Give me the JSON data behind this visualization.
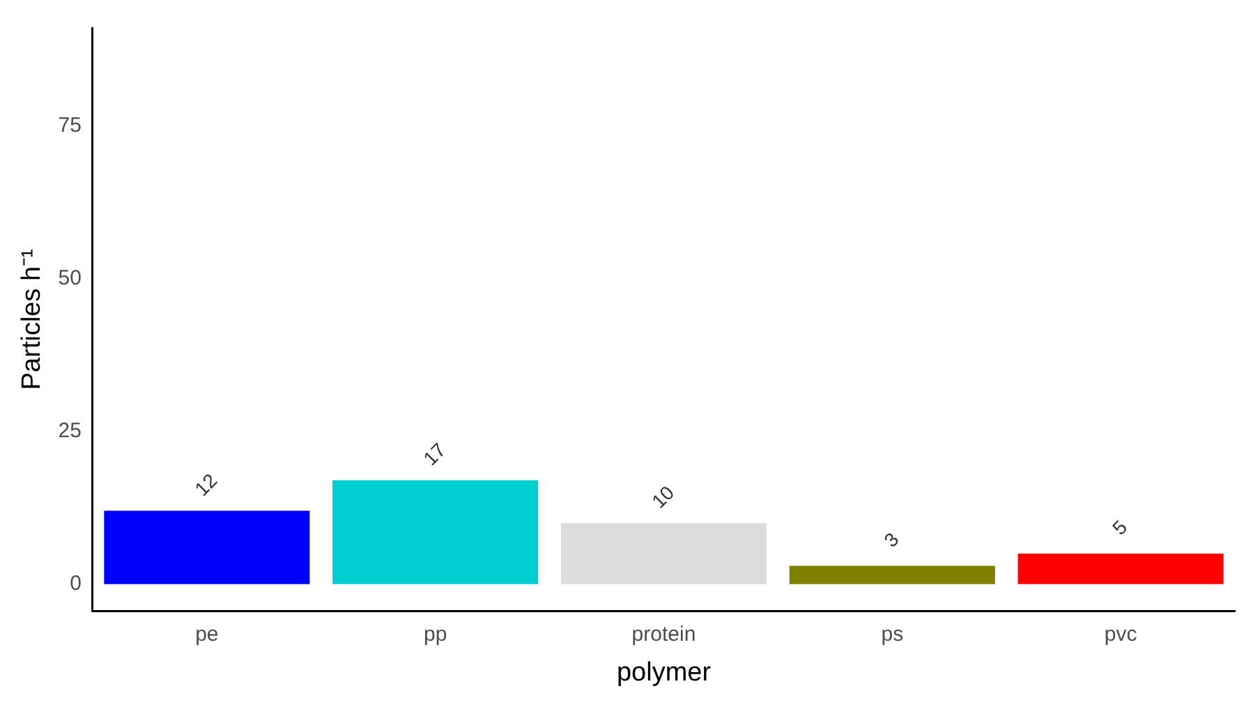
{
  "chart_data": {
    "type": "bar",
    "xlabel": "polymer",
    "ylabel": "Particles h⁻¹",
    "categories": [
      "pe",
      "pp",
      "protein",
      "ps",
      "pvc"
    ],
    "values": [
      12,
      17,
      10,
      3,
      5
    ],
    "colors": [
      "#0000ff",
      "#00ced1",
      "#dcdcdc",
      "#808000",
      "#ff0000"
    ],
    "ylim": [
      -4.4,
      91
    ],
    "yticks": [
      0,
      25,
      50,
      75
    ],
    "grid": false,
    "legend": false,
    "data_labels": true
  }
}
